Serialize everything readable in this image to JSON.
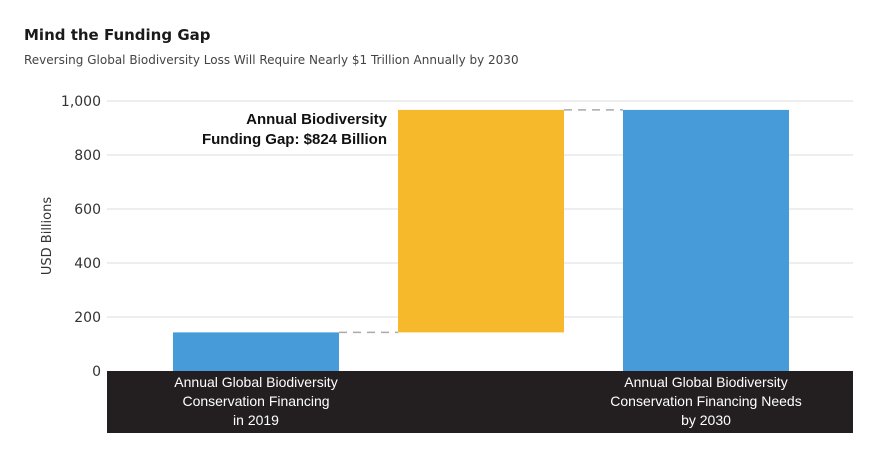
{
  "header": {
    "title": "Mind the Funding Gap",
    "subtitle": "Reversing Global Biodiversity Loss Will Require Nearly $1 Trillion Annually by 2030"
  },
  "chart_data": {
    "type": "bar",
    "subtype": "waterfall",
    "ylabel": "USD Billions",
    "ylim": [
      0,
      1000
    ],
    "yticks": [
      "0",
      "200",
      "400",
      "600",
      "800",
      "1,000"
    ],
    "grid": true,
    "bars": [
      {
        "category": [
          "Annual Global Biodiversity",
          "Conservation Financing",
          "in 2019"
        ],
        "start": 0,
        "end": 143,
        "color": "#479BD8"
      },
      {
        "category": [],
        "start": 143,
        "end": 967,
        "color": "#F6B92B"
      },
      {
        "category": [
          "Annual Global Biodiversity",
          "Conservation Financing Needs",
          "by 2030"
        ],
        "start": 0,
        "end": 967,
        "color": "#479BD8"
      }
    ],
    "annotation": [
      "Annual Biodiversity",
      "Funding Gap: $824 Billion"
    ],
    "colors": {
      "baseline_band": "#231f20",
      "connector": "#aaaaaa",
      "grid": "#dddddd"
    }
  }
}
